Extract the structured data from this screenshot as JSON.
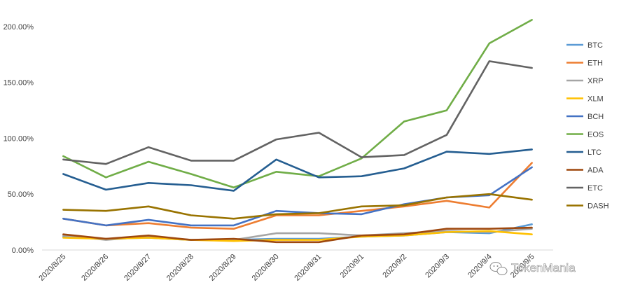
{
  "chart_data": {
    "type": "line",
    "title": "",
    "xlabel": "",
    "ylabel": "",
    "categories": [
      "2020/8/25",
      "2020/8/26",
      "2020/8/27",
      "2020/8/28",
      "2020/8/29",
      "2020/8/30",
      "2020/8/31",
      "2020/9/1",
      "2020/9/2",
      "2020/9/3",
      "2020/9/4",
      "2020/9/5"
    ],
    "y_tick_labels": [
      "0.00%",
      "50.00%",
      "100.00%",
      "150.00%",
      "200.00%"
    ],
    "y_ticks": [
      0,
      50,
      100,
      150,
      200
    ],
    "ylim": [
      0,
      215
    ],
    "y_unit": "%",
    "grid": false,
    "legend_position": "right",
    "series": [
      {
        "name": "BTC",
        "color": "#5b9bd5",
        "values": [
          12,
          10,
          11,
          9,
          9,
          10,
          10,
          12,
          13,
          16,
          15,
          23
        ]
      },
      {
        "name": "ETH",
        "color": "#ed7d31",
        "values": [
          28,
          22,
          24,
          20,
          19,
          31,
          31,
          35,
          39,
          44,
          38,
          78
        ]
      },
      {
        "name": "XRP",
        "color": "#a5a5a5",
        "values": [
          13,
          9,
          12,
          9,
          9,
          15,
          15,
          13,
          15,
          17,
          16,
          19
        ]
      },
      {
        "name": "XLM",
        "color": "#ffc000",
        "values": [
          11,
          10,
          11,
          9,
          8,
          9,
          9,
          12,
          13,
          16,
          17,
          14
        ]
      },
      {
        "name": "BCH",
        "color": "#4472c4",
        "values": [
          28,
          22,
          27,
          22,
          22,
          35,
          33,
          32,
          41,
          47,
          49,
          74
        ]
      },
      {
        "name": "EOS",
        "color": "#70ad47",
        "values": [
          84,
          65,
          79,
          68,
          56,
          70,
          66,
          82,
          115,
          125,
          185,
          206
        ]
      },
      {
        "name": "LTC",
        "color": "#255e91",
        "values": [
          68,
          54,
          60,
          58,
          53,
          81,
          65,
          66,
          73,
          88,
          86,
          90
        ]
      },
      {
        "name": "ADA",
        "color": "#9e480e",
        "values": [
          14,
          10,
          13,
          9,
          10,
          7,
          7,
          13,
          14,
          19,
          19,
          20
        ]
      },
      {
        "name": "ETC",
        "color": "#636363",
        "values": [
          81,
          77,
          92,
          80,
          80,
          99,
          105,
          83,
          85,
          103,
          169,
          163
        ]
      },
      {
        "name": "DASH",
        "color": "#997300",
        "values": [
          36,
          35,
          39,
          31,
          28,
          32,
          33,
          39,
          40,
          47,
          50,
          45
        ]
      }
    ]
  },
  "watermark": {
    "text": "TokenMania",
    "icon": "wechat-icon"
  }
}
